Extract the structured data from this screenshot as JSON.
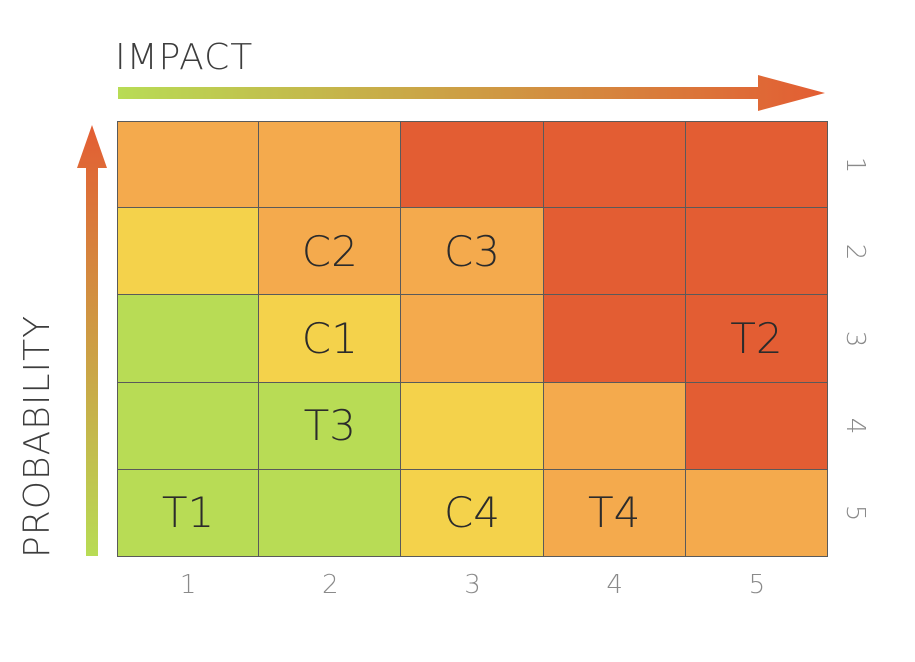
{
  "axes": {
    "x_title": "IMPACT",
    "y_title": "PROBABILITY",
    "x_ticks": [
      "1",
      "2",
      "3",
      "4",
      "5"
    ],
    "y_ticks": [
      "1",
      "2",
      "3",
      "4",
      "5"
    ]
  },
  "colors": {
    "green": "#b8dc55",
    "yellow": "#f4d24b",
    "orange": "#f4aa4d",
    "red": "#e35d33",
    "arrow_start": "#b8dc55",
    "arrow_end": "#e35d33"
  },
  "matrix": [
    [
      {
        "level": "orange",
        "label": ""
      },
      {
        "level": "orange",
        "label": ""
      },
      {
        "level": "red",
        "label": ""
      },
      {
        "level": "red",
        "label": ""
      },
      {
        "level": "red",
        "label": ""
      }
    ],
    [
      {
        "level": "yellow",
        "label": ""
      },
      {
        "level": "orange",
        "label": "C2"
      },
      {
        "level": "orange",
        "label": "C3"
      },
      {
        "level": "red",
        "label": ""
      },
      {
        "level": "red",
        "label": ""
      }
    ],
    [
      {
        "level": "green",
        "label": ""
      },
      {
        "level": "yellow",
        "label": "C1"
      },
      {
        "level": "orange",
        "label": ""
      },
      {
        "level": "red",
        "label": ""
      },
      {
        "level": "red",
        "label": "T2"
      }
    ],
    [
      {
        "level": "green",
        "label": ""
      },
      {
        "level": "green",
        "label": "T3"
      },
      {
        "level": "yellow",
        "label": ""
      },
      {
        "level": "orange",
        "label": ""
      },
      {
        "level": "red",
        "label": ""
      }
    ],
    [
      {
        "level": "green",
        "label": "T1"
      },
      {
        "level": "green",
        "label": ""
      },
      {
        "level": "yellow",
        "label": "C4"
      },
      {
        "level": "orange",
        "label": "T4"
      },
      {
        "level": "orange",
        "label": ""
      }
    ]
  ]
}
